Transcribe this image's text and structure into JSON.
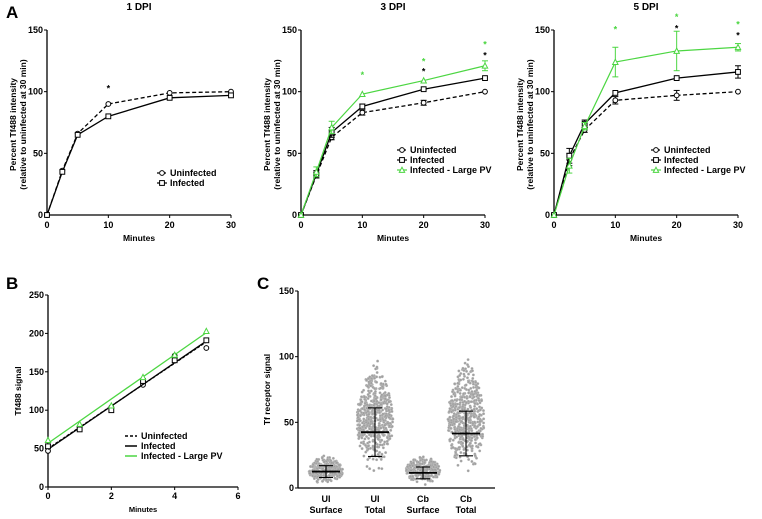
{
  "figure": {
    "panel_labels": [
      "A",
      "B",
      "C"
    ]
  },
  "colors": {
    "black": "#000000",
    "green": "#4cd642",
    "dots": "#a0a0a0"
  },
  "chart_data": [
    {
      "id": "A1",
      "type": "line",
      "title": "1 DPI",
      "xlabel": "Minutes",
      "ylabel": "Percent Tf488 intensity",
      "ylabel2": "(relative to uninfected at 30 min)",
      "xlim": [
        0,
        30
      ],
      "ylim": [
        0,
        150
      ],
      "xticks": [
        0,
        10,
        20,
        30
      ],
      "yticks": [
        0,
        50,
        100,
        150
      ],
      "x": [
        0,
        2.5,
        5,
        10,
        20,
        30
      ],
      "series": [
        {
          "name": "Uninfected",
          "marker": "circle",
          "dash": true,
          "color": "#000000",
          "values": [
            0,
            36,
            66,
            90,
            99,
            100
          ],
          "err": [
            0,
            1,
            1,
            1,
            1,
            1
          ]
        },
        {
          "name": "Infected",
          "marker": "square",
          "dash": false,
          "color": "#000000",
          "values": [
            0,
            35,
            65,
            80,
            95,
            97
          ],
          "err": [
            0,
            1,
            1,
            1,
            1,
            1
          ]
        }
      ],
      "annotations": [
        {
          "x": 10,
          "y": 104,
          "text": "*",
          "color": "#000000"
        }
      ],
      "legend_position": "lower-right"
    },
    {
      "id": "A2",
      "type": "line",
      "title": "3 DPI",
      "xlabel": "Minutes",
      "ylabel": "Percent Tf488 intensity",
      "ylabel2": "(relative to uninfected at 30 min)",
      "xlim": [
        0,
        30
      ],
      "ylim": [
        0,
        150
      ],
      "xticks": [
        0,
        10,
        20,
        30
      ],
      "yticks": [
        0,
        50,
        100,
        150
      ],
      "x": [
        0,
        2.5,
        5,
        10,
        20,
        30
      ],
      "series": [
        {
          "name": "Uninfected",
          "marker": "circle",
          "dash": true,
          "color": "#000000",
          "values": [
            0,
            32,
            63,
            83,
            91,
            100
          ],
          "err": [
            0,
            2,
            2,
            2,
            2,
            1
          ]
        },
        {
          "name": "Infected",
          "marker": "square",
          "dash": false,
          "color": "#000000",
          "values": [
            0,
            33,
            67,
            88,
            102,
            111
          ],
          "err": [
            0,
            3,
            4,
            2,
            1,
            1
          ]
        },
        {
          "name": "Infected - Large PV",
          "marker": "triangle",
          "dash": false,
          "color": "#4cd642",
          "values": [
            0,
            35,
            71,
            98,
            109,
            121
          ],
          "err": [
            0,
            4,
            5,
            1,
            1,
            4
          ]
        }
      ],
      "annotations": [
        {
          "x": 10,
          "y": 115,
          "text": "*",
          "color": "#4cd642"
        },
        {
          "x": 20,
          "y": 126,
          "text": "*",
          "color": "#4cd642"
        },
        {
          "x": 20,
          "y": 118,
          "text": "*",
          "color": "#000000"
        },
        {
          "x": 30,
          "y": 140,
          "text": "*",
          "color": "#4cd642"
        },
        {
          "x": 30,
          "y": 131,
          "text": "*",
          "color": "#000000"
        }
      ],
      "legend_position": "lower-right"
    },
    {
      "id": "A3",
      "type": "line",
      "title": "5 DPI",
      "xlabel": "Minutes",
      "ylabel": "Percent Tf488 intensity",
      "ylabel2": "(relative to uninfected at 30 min)",
      "xlim": [
        0,
        30
      ],
      "ylim": [
        0,
        150
      ],
      "xticks": [
        0,
        10,
        20,
        30
      ],
      "yticks": [
        0,
        50,
        100,
        150
      ],
      "x": [
        0,
        2.5,
        5,
        10,
        20,
        30
      ],
      "series": [
        {
          "name": "Uninfected",
          "marker": "circle",
          "dash": true,
          "color": "#000000",
          "values": [
            0,
            45,
            69,
            93,
            97,
            100
          ],
          "err": [
            0,
            5,
            2,
            3,
            4,
            1
          ]
        },
        {
          "name": "Infected",
          "marker": "square",
          "dash": false,
          "color": "#000000",
          "values": [
            0,
            48,
            74,
            99,
            111,
            116
          ],
          "err": [
            0,
            6,
            3,
            1,
            1,
            5
          ]
        },
        {
          "name": "Infected - Large PV",
          "marker": "triangle",
          "dash": false,
          "color": "#4cd642",
          "values": [
            0,
            40,
            72,
            124,
            133,
            136
          ],
          "err": [
            0,
            6,
            3,
            12,
            16,
            3
          ]
        }
      ],
      "annotations": [
        {
          "x": 10,
          "y": 152,
          "text": "*",
          "color": "#4cd642"
        },
        {
          "x": 20,
          "y": 162,
          "text": "*",
          "color": "#4cd642"
        },
        {
          "x": 20,
          "y": 153,
          "text": "*",
          "color": "#000000"
        },
        {
          "x": 30,
          "y": 156,
          "text": "*",
          "color": "#4cd642"
        },
        {
          "x": 30,
          "y": 147,
          "text": "*",
          "color": "#000000"
        }
      ],
      "legend_position": "lower-right"
    },
    {
      "id": "B",
      "type": "line",
      "title": "",
      "xlabel": "Minutes",
      "ylabel": "Tf488 signal",
      "xlim": [
        0,
        6
      ],
      "ylim": [
        0,
        250
      ],
      "xticks": [
        0,
        2,
        4,
        6
      ],
      "yticks": [
        0,
        50,
        100,
        150,
        200,
        250
      ],
      "x": [
        0,
        1,
        2,
        3,
        4,
        5
      ],
      "series": [
        {
          "name": "Uninfected",
          "marker": "circle",
          "dash": true,
          "color": "#000000",
          "values": [
            47,
            77,
            104,
            133,
            171,
            181
          ],
          "fit": [
            50,
            189
          ]
        },
        {
          "name": "Infected",
          "marker": "square",
          "dash": false,
          "color": "#000000",
          "values": [
            53,
            75,
            100,
            138,
            165,
            191
          ],
          "fit": [
            49,
            190
          ]
        },
        {
          "name": "Infected - Large PV",
          "marker": "triangle",
          "dash": false,
          "color": "#4cd642",
          "values": [
            61,
            82,
            106,
            143,
            172,
            203
          ],
          "fit": [
            57,
            201
          ]
        }
      ],
      "legend_position": "lower-right"
    },
    {
      "id": "C",
      "type": "scatter",
      "title": "",
      "xlabel": "",
      "ylabel": "Tf receptor signal",
      "ylim": [
        0,
        150
      ],
      "yticks": [
        0,
        50,
        100,
        150
      ],
      "categories": [
        [
          "UI",
          "Surface"
        ],
        [
          "UI",
          "Total"
        ],
        [
          "Cb",
          "Surface"
        ],
        [
          "Cb",
          "Total"
        ]
      ],
      "groups": [
        {
          "name": "UI Surface",
          "min": 2,
          "max": 27,
          "mean": 12.5,
          "sd_low": 8,
          "sd_high": 17
        },
        {
          "name": "UI Total",
          "min": 9,
          "max": 102,
          "mean": 42.5,
          "sd_low": 24,
          "sd_high": 61
        },
        {
          "name": "Cb Surface",
          "min": 2,
          "max": 27,
          "mean": 11.5,
          "sd_low": 7,
          "sd_high": 16
        },
        {
          "name": "Cb Total",
          "min": 6,
          "max": 105,
          "mean": 41.5,
          "sd_low": 24.5,
          "sd_high": 58.5
        }
      ]
    }
  ]
}
